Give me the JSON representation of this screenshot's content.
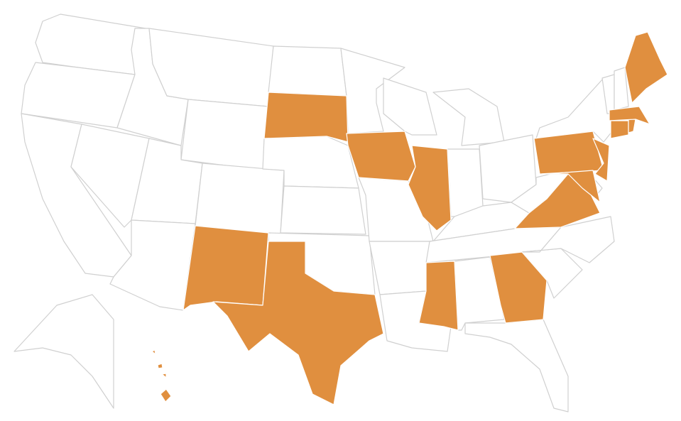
{
  "map": {
    "type": "choropleth",
    "region": "United States",
    "colors": {
      "highlighted": "#E08F3F",
      "default": "#FFFFFF",
      "border_default": "#D0D0D0",
      "border_highlighted": "#FFFFFF"
    },
    "highlighted_states": [
      "SD",
      "IA",
      "IL",
      "TX",
      "NM",
      "MS",
      "GA",
      "VA",
      "MD",
      "PA",
      "NJ",
      "CT",
      "MA",
      "RI",
      "ME",
      "HI"
    ],
    "states": [
      "WA",
      "OR",
      "CA",
      "NV",
      "ID",
      "MT",
      "WY",
      "UT",
      "AZ",
      "CO",
      "NM",
      "ND",
      "SD",
      "NE",
      "KS",
      "OK",
      "TX",
      "MN",
      "IA",
      "MO",
      "AR",
      "LA",
      "WI",
      "IL",
      "MI",
      "IN",
      "OH",
      "KY",
      "TN",
      "MS",
      "AL",
      "GA",
      "FL",
      "SC",
      "NC",
      "VA",
      "WV",
      "PA",
      "NY",
      "NJ",
      "DE",
      "MD",
      "CT",
      "RI",
      "MA",
      "VT",
      "NH",
      "ME",
      "AK",
      "HI"
    ]
  }
}
